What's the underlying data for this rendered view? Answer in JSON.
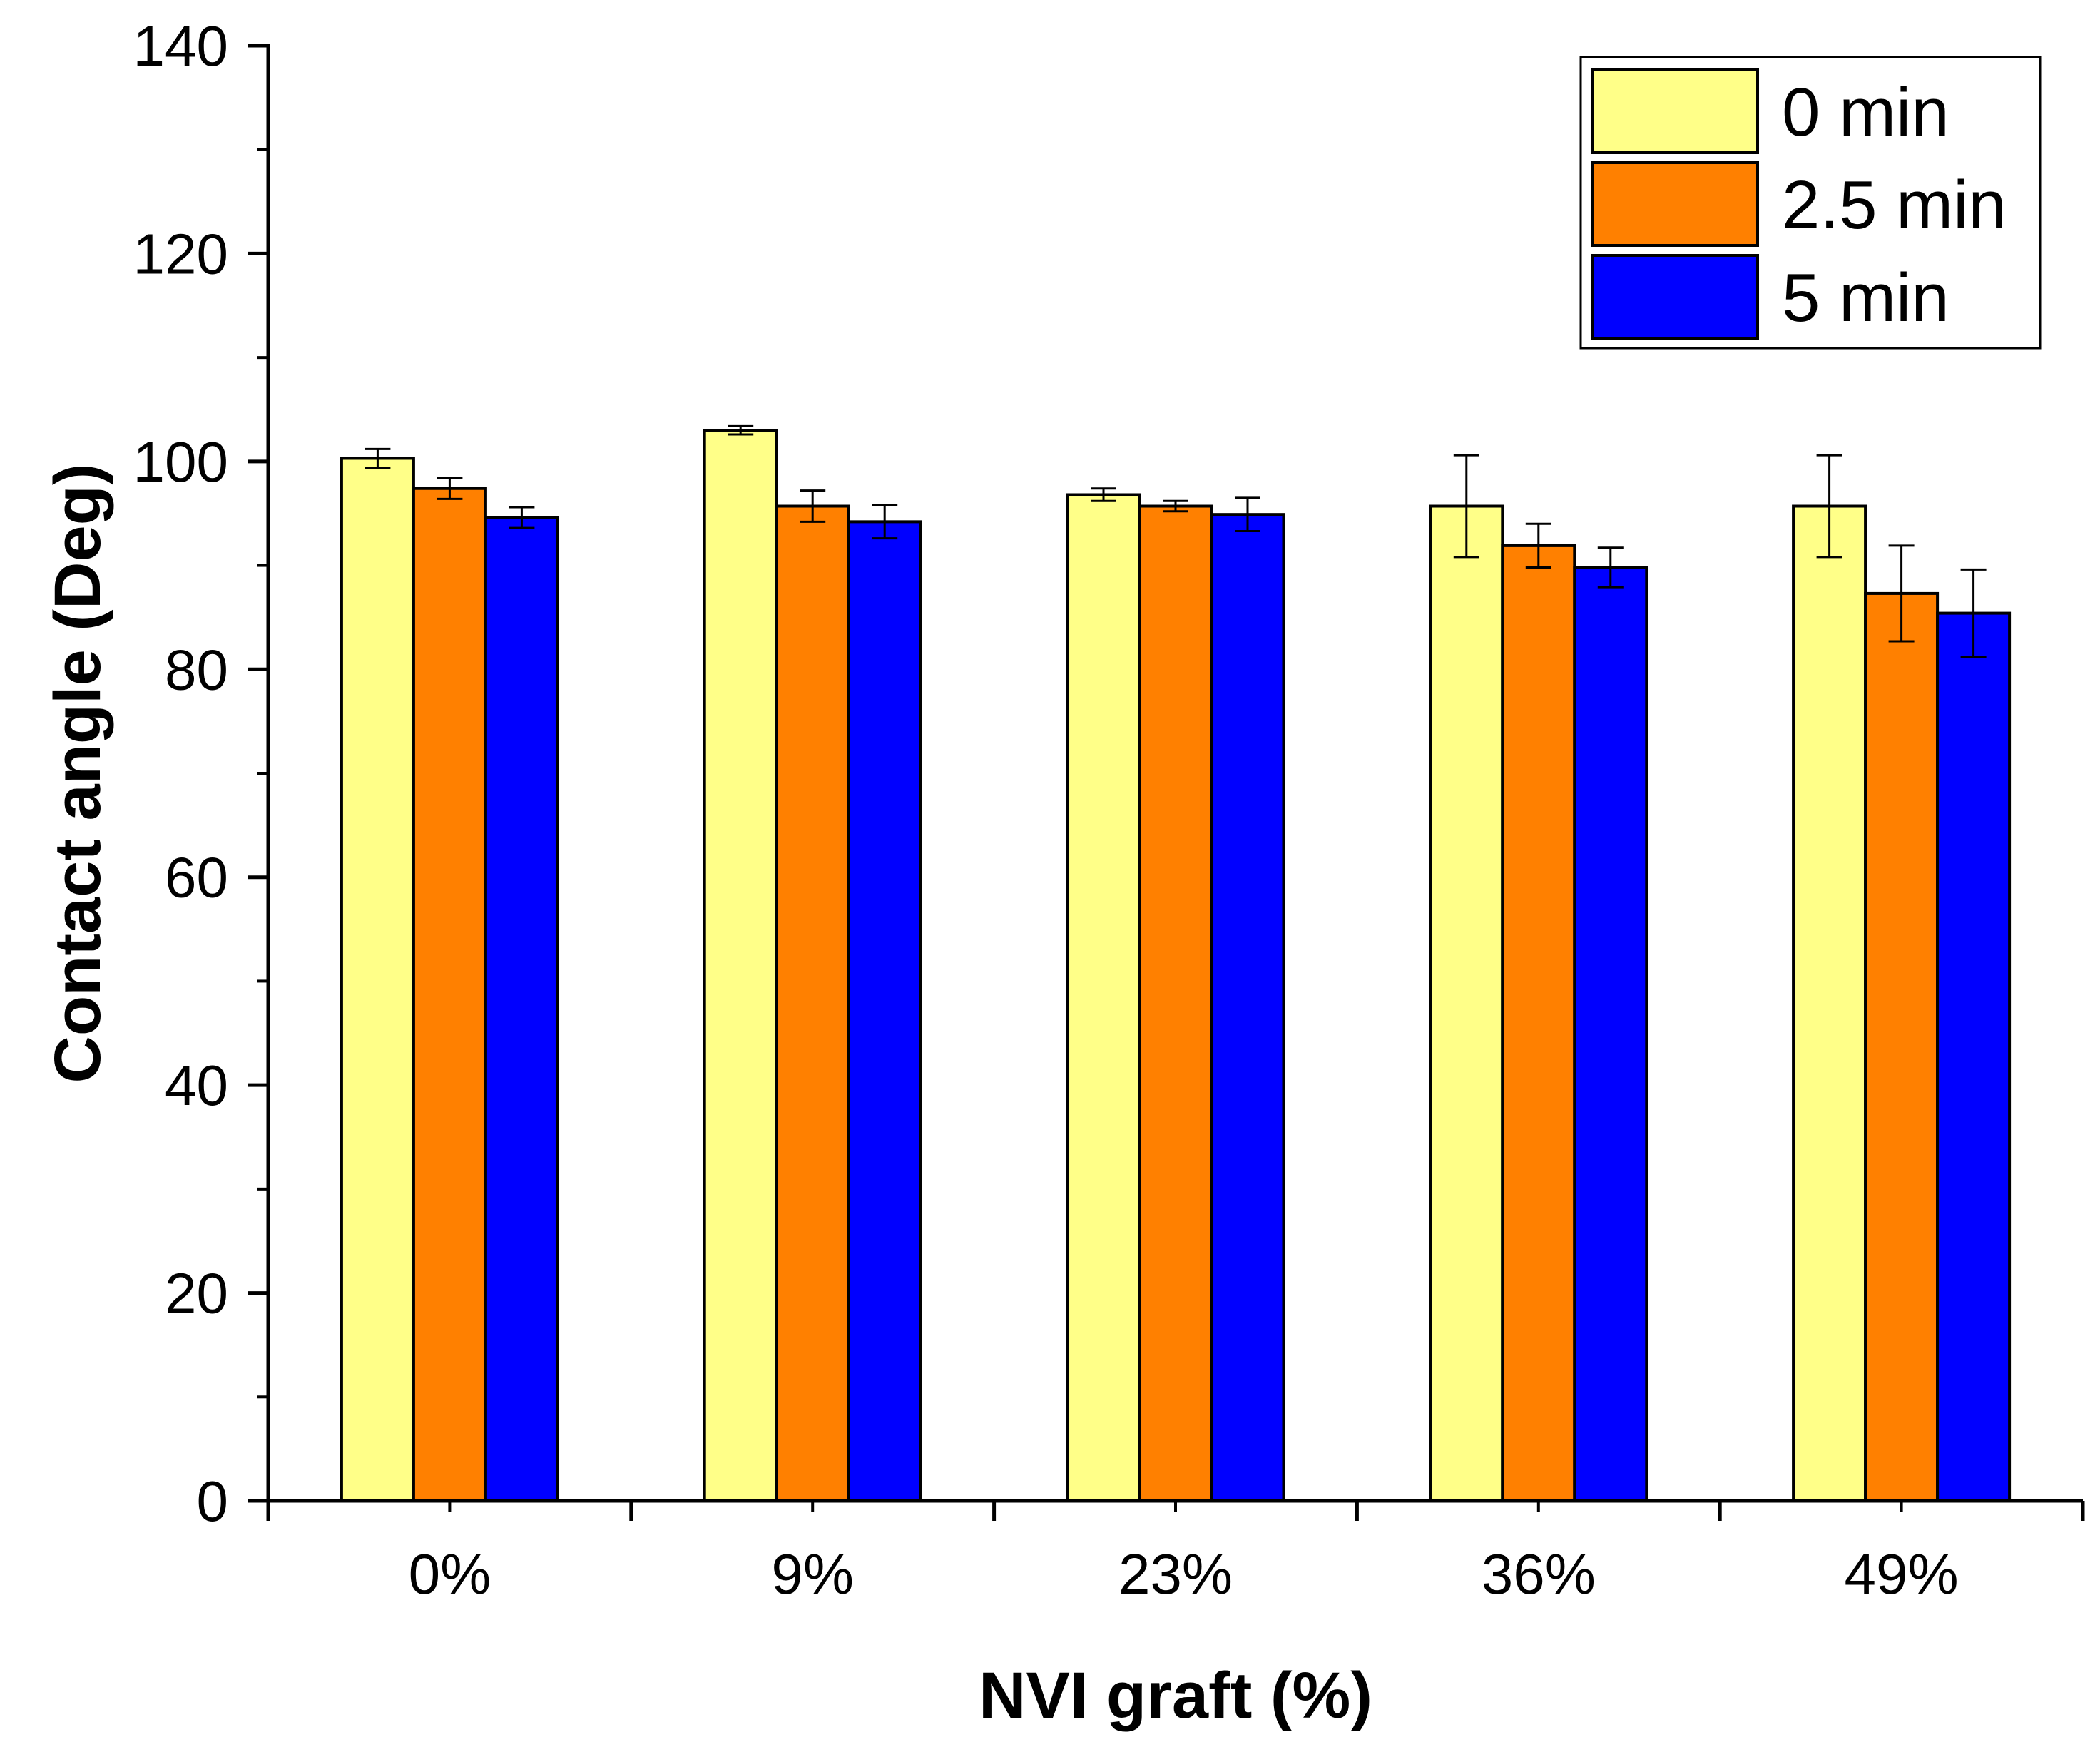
{
  "chart_data": {
    "type": "bar",
    "title": "",
    "xlabel": "NVI graft (%)",
    "ylabel": "Contact angle (Deg)",
    "ylim": [
      0,
      140
    ],
    "yticks": [
      0,
      20,
      40,
      60,
      80,
      100,
      120,
      140
    ],
    "categories": [
      "0%",
      "9%",
      "23%",
      "36%",
      "49%"
    ],
    "series": [
      {
        "name": "0 min",
        "color": "#FFFF88",
        "values": [
          100.3,
          103.0,
          96.8,
          95.7,
          95.7
        ],
        "errors": [
          0.9,
          0.4,
          0.6,
          4.9,
          4.9
        ]
      },
      {
        "name": "2.5 min",
        "color": "#FF8000",
        "values": [
          97.4,
          95.7,
          95.7,
          91.9,
          87.3
        ],
        "errors": [
          1.0,
          1.5,
          0.5,
          2.1,
          4.6
        ]
      },
      {
        "name": "5 min",
        "color": "#0000FF",
        "values": [
          94.6,
          94.2,
          94.9,
          89.8,
          85.4
        ],
        "errors": [
          1.0,
          1.6,
          1.6,
          1.9,
          4.2
        ]
      }
    ],
    "legend": {
      "position": "top-right"
    },
    "grid": false
  }
}
